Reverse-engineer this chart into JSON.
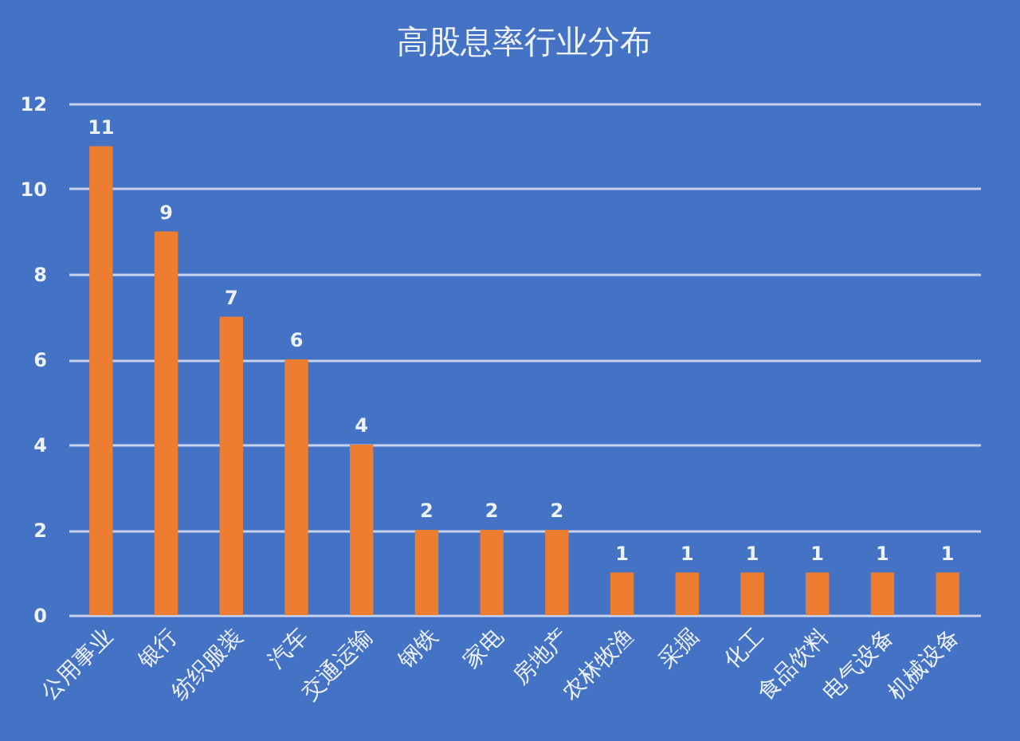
{
  "chart_data": {
    "type": "bar",
    "title": "高股息率行业分布",
    "categories": [
      "公用事业",
      "银行",
      "纺织服装",
      "汽车",
      "交通运输",
      "钢铁",
      "家电",
      "房地产",
      "农林牧渔",
      "采掘",
      "化工",
      "食品饮料",
      "电气设备",
      "机械设备"
    ],
    "values": [
      11,
      9,
      7,
      6,
      4,
      2,
      2,
      2,
      1,
      1,
      1,
      1,
      1,
      1
    ],
    "color": "#ed7d31",
    "ylim": [
      0,
      12
    ],
    "yticks": [
      0,
      2,
      4,
      6,
      8,
      10,
      12
    ],
    "grid": "y",
    "data_labels": true
  }
}
